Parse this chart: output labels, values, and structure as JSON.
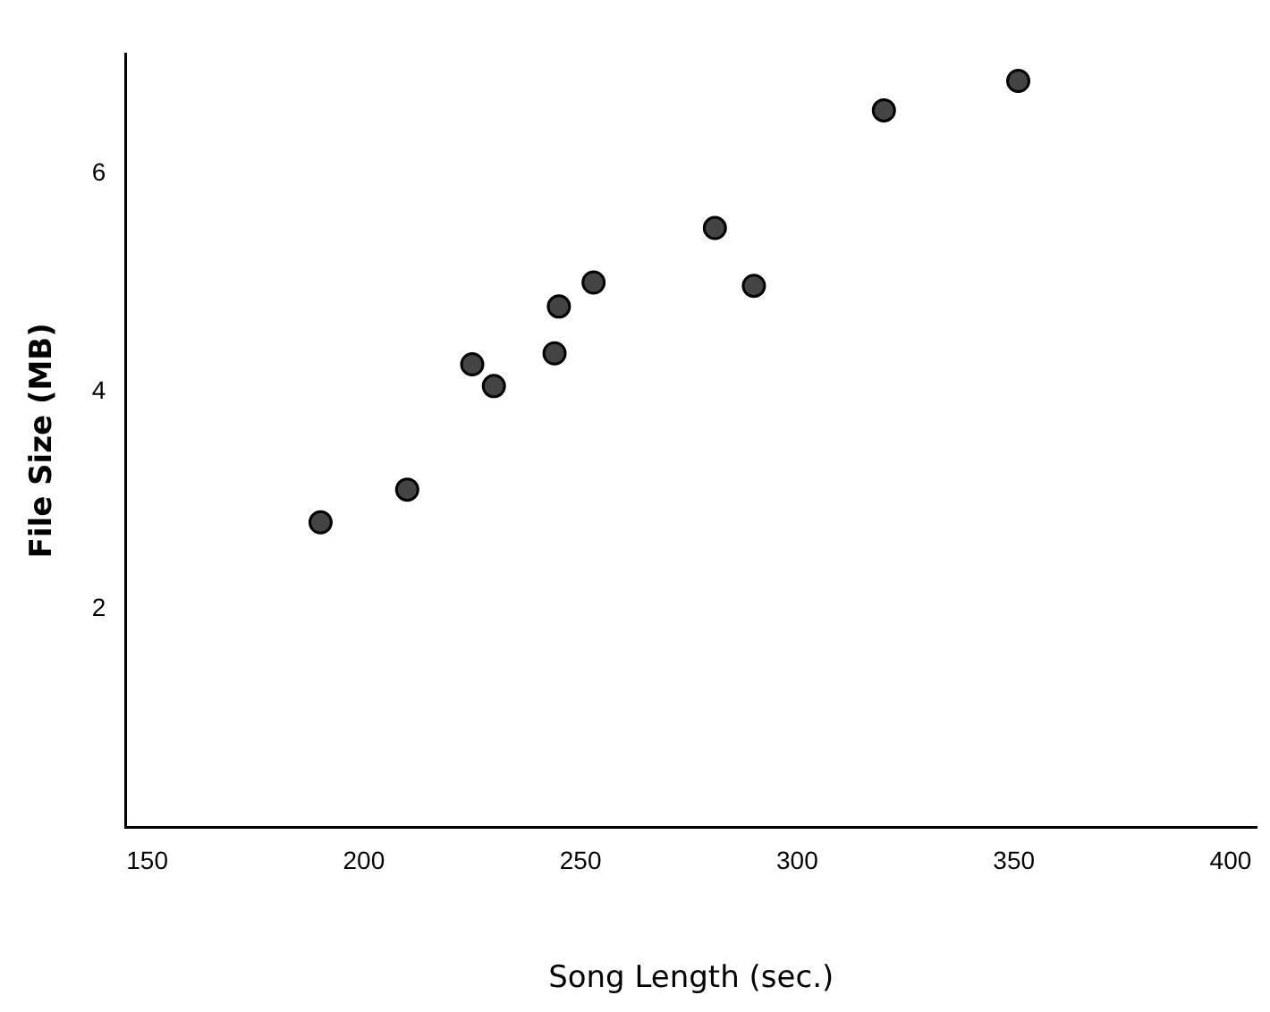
{
  "chart_data": {
    "type": "scatter",
    "xlabel": "Song Length (sec.)",
    "ylabel": "File Size (MB)",
    "x": [
      190,
      210,
      225,
      230,
      244,
      245,
      253,
      281,
      290,
      320,
      351
    ],
    "values": [
      2.8,
      3.1,
      4.25,
      4.05,
      4.35,
      4.78,
      5.0,
      5.5,
      4.97,
      6.58,
      6.85
    ],
    "color": "#444444",
    "marker": "circle",
    "grid": false,
    "legend": false,
    "xlim": [
      145,
      406
    ],
    "xticks": [
      150,
      200,
      250,
      300,
      350,
      400
    ],
    "ylim": [
      0,
      7.1
    ],
    "yticks": [
      2,
      4,
      6
    ]
  }
}
